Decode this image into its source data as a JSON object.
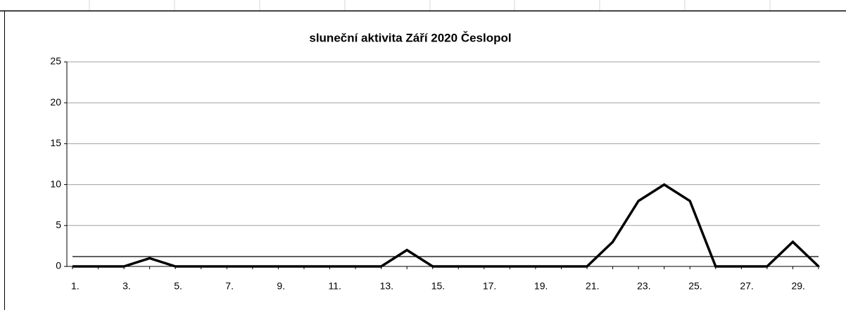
{
  "chart_data": {
    "type": "line",
    "title": "sluneční aktivita  Září 2020 Česlopol",
    "categories": [
      "1.",
      null,
      "3.",
      null,
      "5.",
      null,
      "7.",
      null,
      "9.",
      null,
      "11.",
      null,
      "13.",
      null,
      "15.",
      null,
      "17.",
      null,
      "19.",
      null,
      "21.",
      null,
      "23.",
      null,
      "25.",
      null,
      "27.",
      null,
      "29.",
      null
    ],
    "series": [
      {
        "color": "#000000",
        "values": [
          0,
          0,
          0,
          1,
          0,
          0,
          0,
          0,
          0,
          0,
          0,
          0,
          0,
          2,
          0,
          0,
          0,
          0,
          0,
          0,
          0,
          3,
          8,
          10,
          8,
          0,
          0,
          0,
          3,
          0
        ]
      },
      {
        "color": "#000000",
        "values": [
          1.2,
          1.2,
          1.2,
          1.2,
          1.2,
          1.2,
          1.2,
          1.2,
          1.2,
          1.2,
          1.2,
          1.2,
          1.2,
          1.2,
          1.2,
          1.2,
          1.2,
          1.2,
          1.2,
          1.2,
          1.2,
          1.2,
          1.2,
          1.2,
          1.2,
          1.2,
          1.2,
          1.2,
          1.2,
          1.2
        ]
      }
    ],
    "ylim": [
      0,
      25
    ],
    "yticks": [
      0,
      5,
      10,
      15,
      20,
      25
    ],
    "grid": true
  }
}
